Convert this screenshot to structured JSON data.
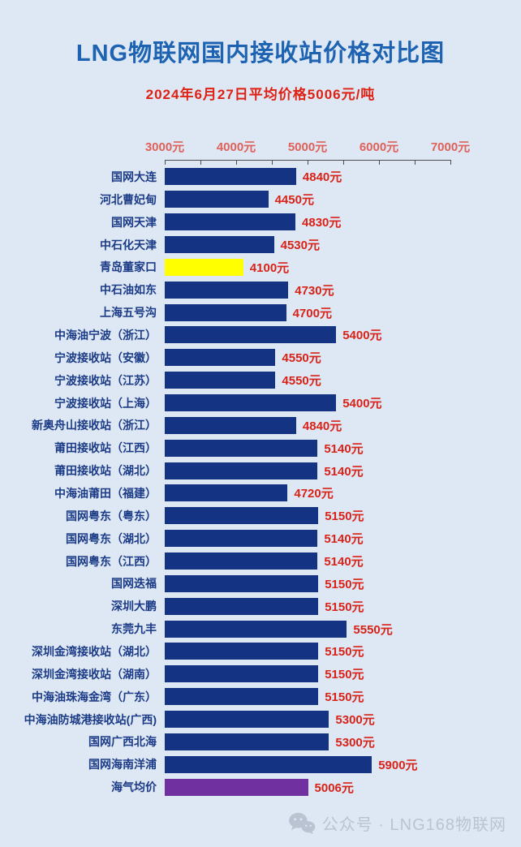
{
  "colors": {
    "navy": "#143383",
    "yellow": "#ffff00",
    "purple": "#7030a0",
    "title_blue": "#1e63b2",
    "subtitle_red": "#df2114",
    "value_red": "#d92218",
    "axis_label_red": "#e0605a",
    "label_navy": "#1c3b87",
    "background": "#dde8f4",
    "footer_gray": "#b9c3d2"
  },
  "chart_data": {
    "type": "bar",
    "orientation": "horizontal",
    "title": "LNG物联网国内接收站价格对比图",
    "subtitle": "2024年6月27日平均价格5006元/吨",
    "unit": "元/吨",
    "grid": false,
    "legend": false,
    "x_axis": {
      "min": 3000,
      "max": 7000,
      "label_step": 1000,
      "minor_tick_step": 500,
      "tick_labels": [
        "3000元",
        "4000元",
        "5000元",
        "6000元",
        "7000元"
      ]
    },
    "bars": [
      {
        "label": "国网大连",
        "value": 4840,
        "display": "4840元",
        "color": "navy"
      },
      {
        "label": "河北曹妃甸",
        "value": 4450,
        "display": "4450元",
        "color": "navy"
      },
      {
        "label": "国网天津",
        "value": 4830,
        "display": "4830元",
        "color": "navy"
      },
      {
        "label": "中石化天津",
        "value": 4530,
        "display": "4530元",
        "color": "navy"
      },
      {
        "label": "青岛董家口",
        "value": 4100,
        "display": "4100元",
        "color": "yellow"
      },
      {
        "label": "中石油如东",
        "value": 4730,
        "display": "4730元",
        "color": "navy"
      },
      {
        "label": "上海五号沟",
        "value": 4700,
        "display": "4700元",
        "color": "navy"
      },
      {
        "label": "中海油宁波（浙江）",
        "value": 5400,
        "display": "5400元",
        "color": "navy"
      },
      {
        "label": "宁波接收站（安徽）",
        "value": 4550,
        "display": "4550元",
        "color": "navy"
      },
      {
        "label": "宁波接收站（江苏）",
        "value": 4550,
        "display": "4550元",
        "color": "navy"
      },
      {
        "label": "宁波接收站（上海）",
        "value": 5400,
        "display": "5400元",
        "color": "navy"
      },
      {
        "label": "新奥舟山接收站（浙江）",
        "value": 4840,
        "display": "4840元",
        "color": "navy"
      },
      {
        "label": "莆田接收站（江西）",
        "value": 5140,
        "display": "5140元",
        "color": "navy"
      },
      {
        "label": "莆田接收站（湖北）",
        "value": 5140,
        "display": "5140元",
        "color": "navy"
      },
      {
        "label": "中海油莆田（福建）",
        "value": 4720,
        "display": "4720元",
        "color": "navy"
      },
      {
        "label": "国网粤东（粤东）",
        "value": 5150,
        "display": "5150元",
        "color": "navy"
      },
      {
        "label": "国网粤东（湖北）",
        "value": 5140,
        "display": "5140元",
        "color": "navy"
      },
      {
        "label": "国网粤东（江西）",
        "value": 5140,
        "display": "5140元",
        "color": "navy"
      },
      {
        "label": "国网迭福",
        "value": 5150,
        "display": "5150元",
        "color": "navy"
      },
      {
        "label": "深圳大鹏",
        "value": 5150,
        "display": "5150元",
        "color": "navy"
      },
      {
        "label": "东莞九丰",
        "value": 5550,
        "display": "5550元",
        "color": "navy"
      },
      {
        "label": "深圳金湾接收站（湖北）",
        "value": 5150,
        "display": "5150元",
        "color": "navy"
      },
      {
        "label": "深圳金湾接收站（湖南）",
        "value": 5150,
        "display": "5150元",
        "color": "navy"
      },
      {
        "label": "中海油珠海金湾（广东）",
        "value": 5150,
        "display": "5150元",
        "color": "navy"
      },
      {
        "label": "中海油防城港接收站(广西)",
        "value": 5300,
        "display": "5300元",
        "color": "navy"
      },
      {
        "label": "国网广西北海",
        "value": 5300,
        "display": "5300元",
        "color": "navy"
      },
      {
        "label": "国网海南洋浦",
        "value": 5900,
        "display": "5900元",
        "color": "navy"
      },
      {
        "label": "海气均价",
        "value": 5006,
        "display": "5006元",
        "color": "purple"
      }
    ]
  },
  "footer": {
    "icon": "wechat-icon",
    "text": "公众号 · LNG168物联网"
  }
}
